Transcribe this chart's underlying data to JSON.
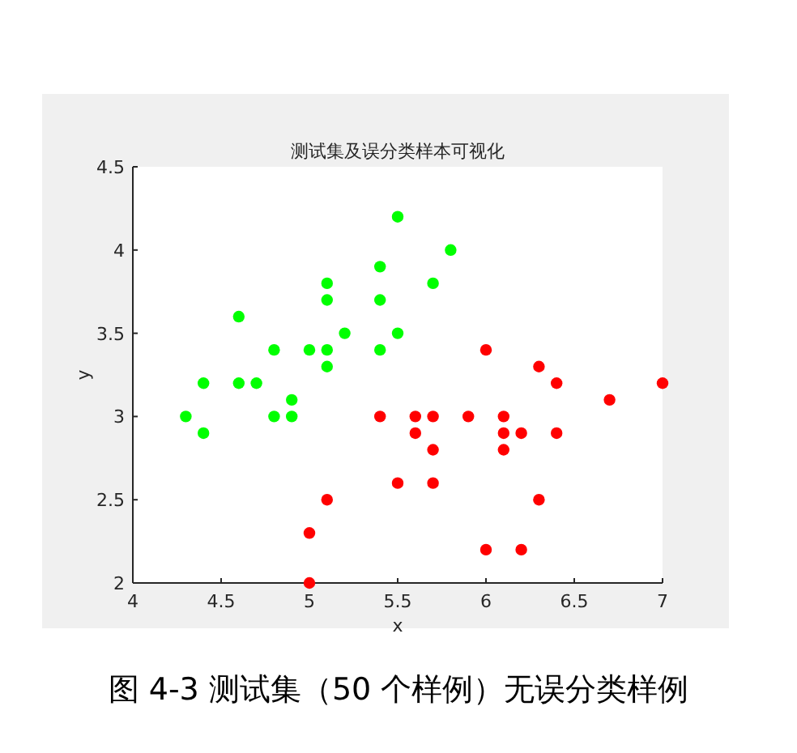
{
  "chart_data": {
    "type": "scatter",
    "title": "测试集及误分类样本可视化",
    "xlabel": "x",
    "ylabel": "y",
    "xlim": [
      4,
      7
    ],
    "ylim": [
      2,
      4.5
    ],
    "xticks": [
      4,
      4.5,
      5,
      5.5,
      6,
      6.5,
      7
    ],
    "yticks": [
      2,
      2.5,
      3,
      3.5,
      4,
      4.5
    ],
    "marker": "circle",
    "series": [
      {
        "color": "#00ff00",
        "x": [
          4.3,
          4.4,
          4.4,
          4.6,
          4.6,
          4.7,
          4.8,
          4.8,
          4.9,
          4.9,
          5.0,
          5.1,
          5.1,
          5.1,
          5.1,
          5.2,
          5.4,
          5.4,
          5.4,
          5.5,
          5.5,
          5.7,
          5.8
        ],
        "values": [
          3.0,
          3.2,
          2.9,
          3.6,
          3.2,
          3.2,
          3.4,
          3.0,
          3.1,
          3.0,
          3.4,
          3.8,
          3.7,
          3.4,
          3.3,
          3.5,
          3.9,
          3.7,
          3.4,
          4.2,
          3.5,
          3.8,
          4.0
        ]
      },
      {
        "color": "#ff0000",
        "x": [
          5.0,
          5.0,
          5.1,
          5.4,
          5.5,
          5.6,
          5.6,
          5.7,
          5.7,
          5.7,
          5.9,
          6.0,
          6.0,
          6.1,
          6.1,
          6.1,
          6.2,
          6.2,
          6.3,
          6.3,
          6.4,
          6.4,
          6.7,
          7.0
        ],
        "values": [
          2.3,
          2.0,
          2.5,
          3.0,
          2.6,
          3.0,
          2.9,
          3.0,
          2.8,
          2.6,
          3.0,
          3.4,
          2.2,
          3.0,
          2.9,
          2.8,
          2.9,
          2.2,
          3.3,
          2.5,
          3.2,
          2.9,
          3.1,
          3.2
        ]
      }
    ],
    "annotations": [
      "图 4-3 测试集（50 个样例）无误分类样例"
    ]
  }
}
